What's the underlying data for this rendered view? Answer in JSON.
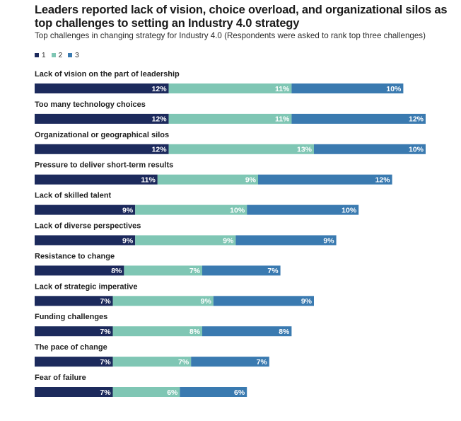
{
  "title": "Leaders reported lack of vision, choice overload, and organizational silos as top challenges to setting an Industry 4.0 strategy",
  "subtitle": "Top challenges in changing strategy for Industry 4.0 (Respondents were asked to rank top three challenges)",
  "colors": {
    "rank1": "#1c2a5c",
    "rank2": "#7fc6b4",
    "rank3": "#3a7ab0",
    "text": "#222222",
    "label_on_bar": "#ffffff"
  },
  "chart_data": {
    "type": "bar",
    "orientation": "horizontal",
    "stacked": true,
    "title": "Leaders reported lack of vision, choice overload, and organizational silos as top challenges to setting an Industry 4.0 strategy",
    "subtitle": "Top challenges in changing strategy for Industry 4.0 (Respondents were asked to rank top three challenges)",
    "value_suffix": "%",
    "legend_position": "top-left",
    "categories": [
      "Lack of vision on the part of leadership",
      "Too many technology choices",
      "Organizational or geographical silos",
      "Pressure to deliver short-term results",
      "Lack of skilled talent",
      "Lack of diverse perspectives",
      "Resistance to change",
      "Lack of strategic imperative",
      "Funding challenges",
      "The pace of change",
      "Fear of failure"
    ],
    "series": [
      {
        "name": "1",
        "values": [
          12,
          12,
          12,
          11,
          9,
          9,
          8,
          7,
          7,
          7,
          7
        ]
      },
      {
        "name": "2",
        "values": [
          11,
          11,
          13,
          9,
          10,
          9,
          7,
          9,
          8,
          7,
          6
        ]
      },
      {
        "name": "3",
        "values": [
          10,
          12,
          10,
          12,
          10,
          9,
          7,
          9,
          8,
          7,
          6
        ]
      }
    ]
  }
}
